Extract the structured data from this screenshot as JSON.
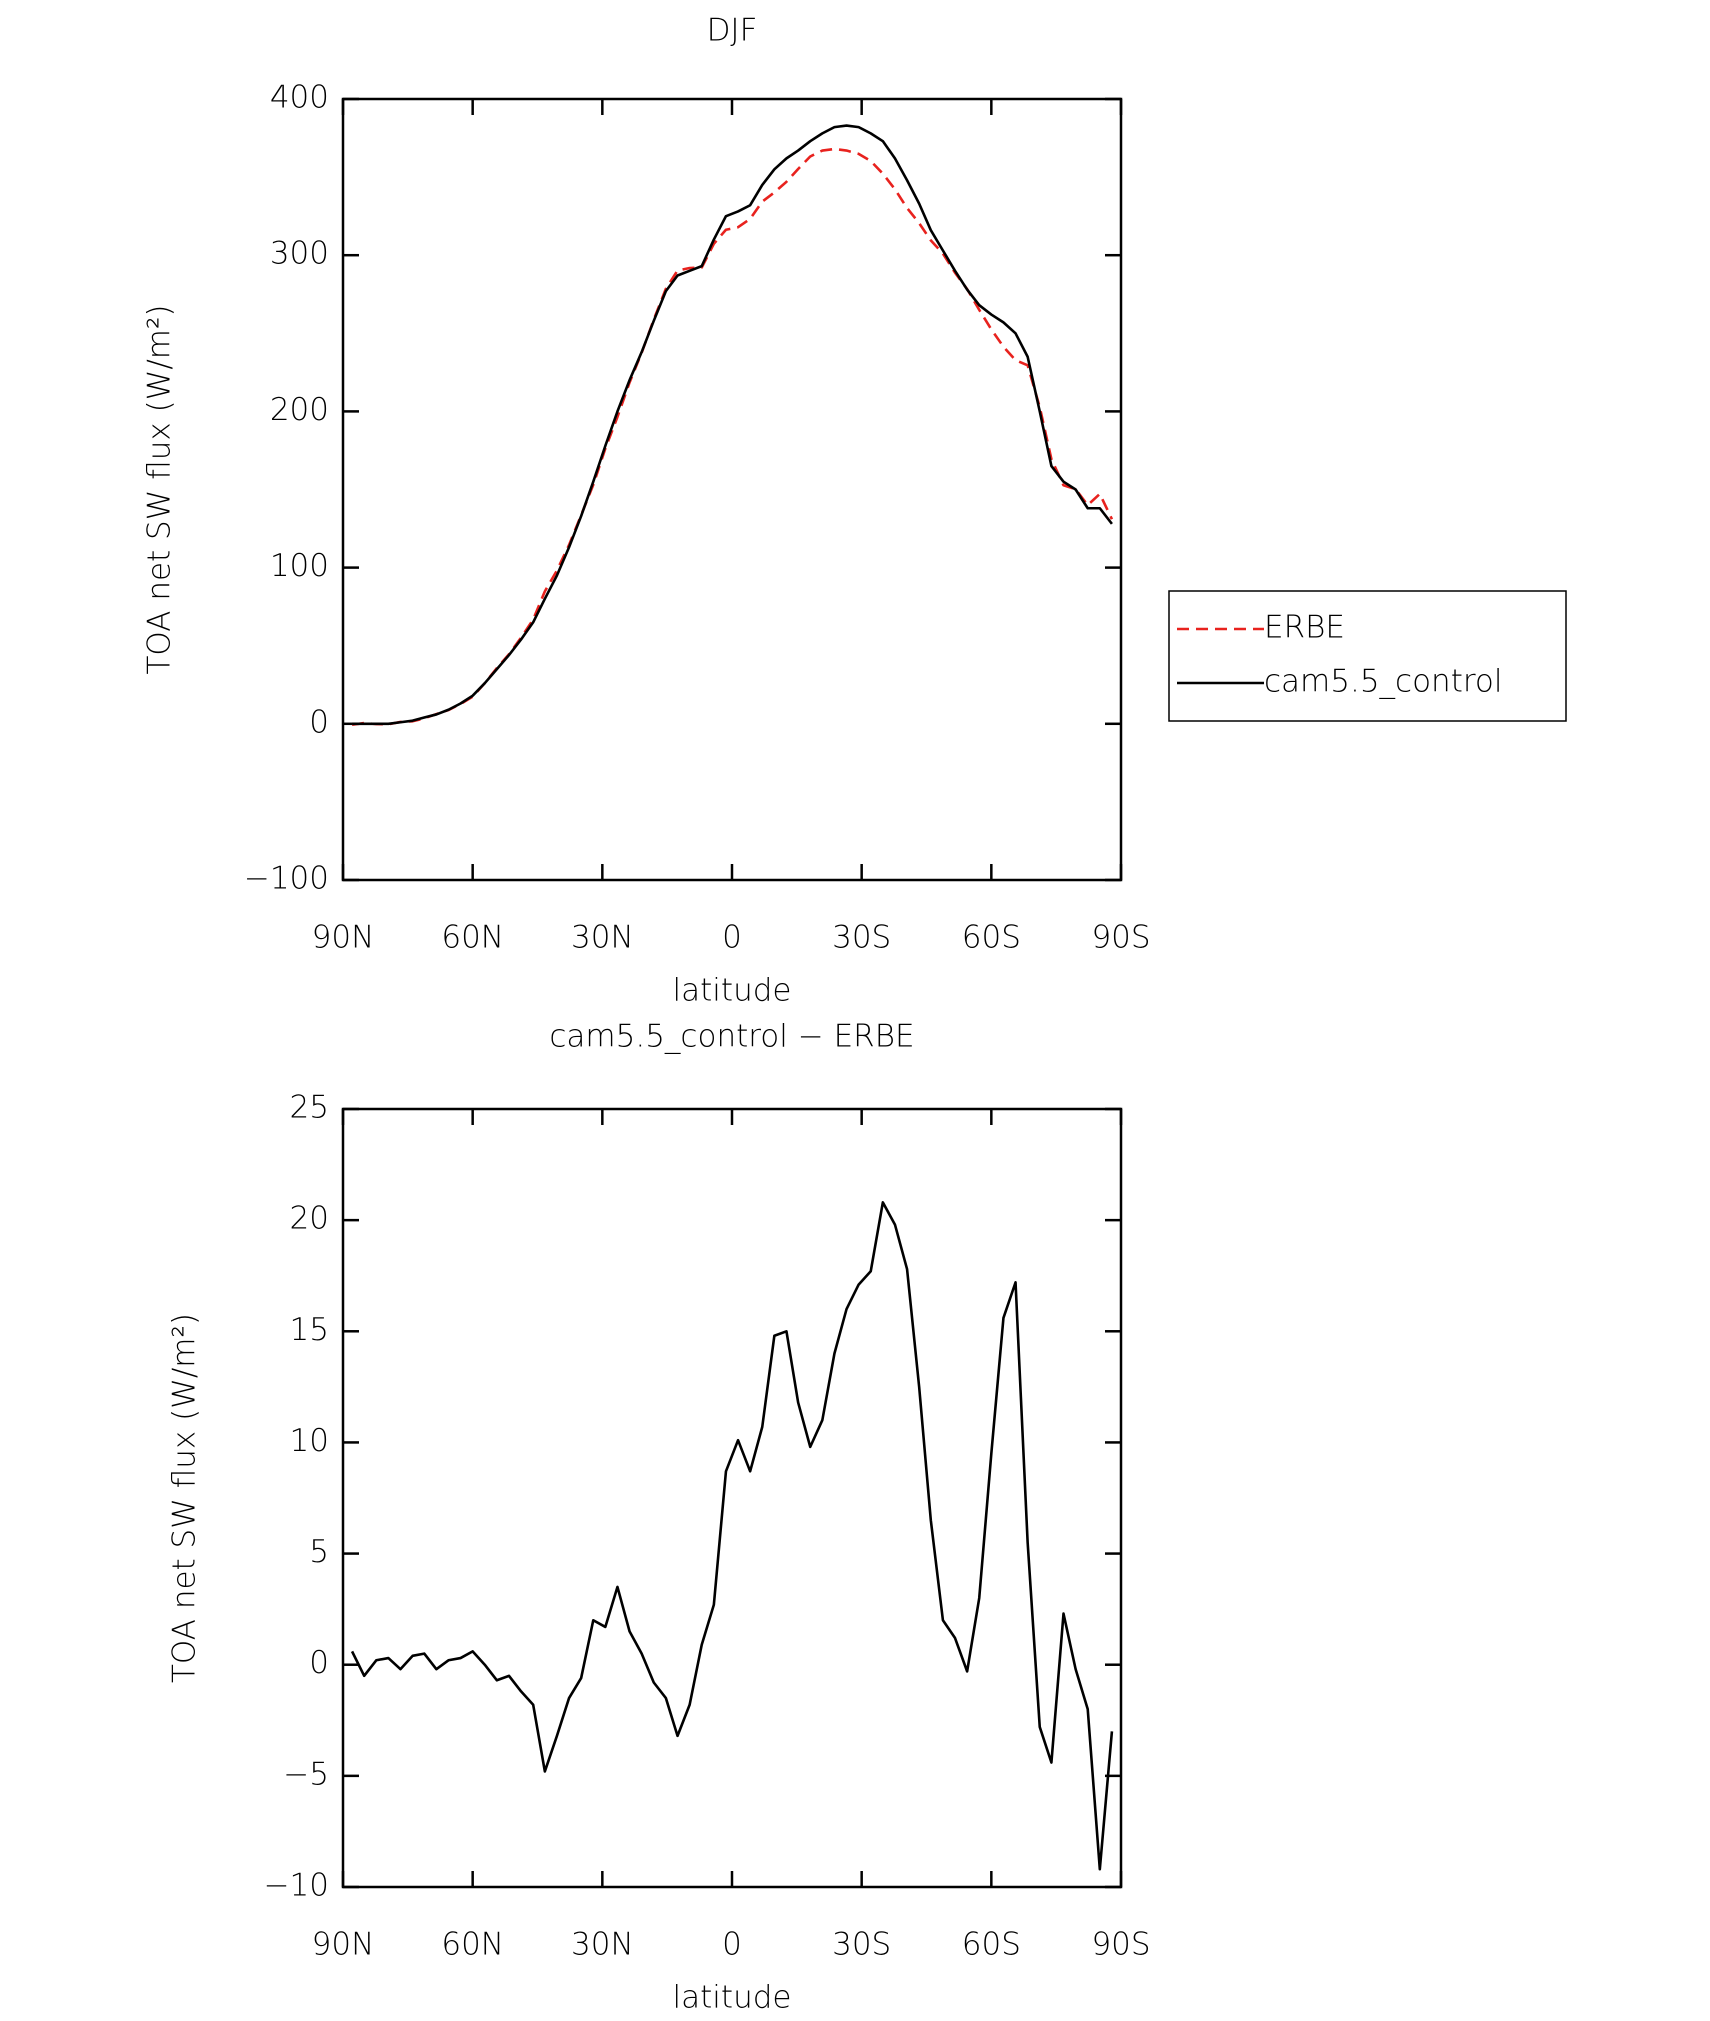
{
  "chart_data": [
    {
      "type": "line",
      "title": "DJF",
      "x_label": "latitude",
      "y_label": "TOA net SW flux (W/m²)",
      "x": [
        87.9,
        85.1,
        82.3,
        79.5,
        76.7,
        73.9,
        71.2,
        68.4,
        65.6,
        62.8,
        60.0,
        57.2,
        54.4,
        51.6,
        48.8,
        46.0,
        43.3,
        40.5,
        37.7,
        34.9,
        32.1,
        29.3,
        26.5,
        23.7,
        20.9,
        18.1,
        15.3,
        12.6,
        9.8,
        7.0,
        4.2,
        1.4,
        -1.4,
        -4.2,
        -7.0,
        -9.8,
        -12.6,
        -15.3,
        -18.1,
        -20.9,
        -23.7,
        -26.5,
        -29.3,
        -32.1,
        -34.9,
        -37.7,
        -40.5,
        -43.3,
        -46.0,
        -48.8,
        -51.6,
        -54.4,
        -57.2,
        -60.0,
        -62.8,
        -65.6,
        -68.4,
        -71.2,
        -73.9,
        -76.7,
        -79.5,
        -82.3,
        -85.1,
        -87.9
      ],
      "series": [
        {
          "name": "ERBE",
          "color": "#e8221e",
          "line_style": "dashed",
          "values": [
            -0.6,
            0.5,
            -0.2,
            -0.3,
            1.2,
            1.6,
            3.5,
            6.2,
            8.8,
            12.7,
            17.4,
            26.0,
            35.7,
            44.5,
            55.2,
            66.8,
            84.8,
            98.2,
            114.5,
            133.6,
            153.0,
            176.3,
            196.5,
            218.5,
            237.5,
            258.8,
            278.5,
            290.2,
            291.8,
            292.1,
            307.3,
            316.3,
            317.9,
            323.3,
            334.3,
            340.2,
            347,
            355.2,
            363.2,
            367,
            368,
            367,
            364.9,
            360.3,
            352.2,
            342.2,
            330.2,
            320.5,
            309.5,
            301,
            288.8,
            278.3,
            265,
            252.5,
            241.4,
            232.8,
            229.5,
            202.8,
            169.4,
            152.7,
            150.2,
            140,
            147.2,
            131
          ]
        },
        {
          "name": "cam5.5_control",
          "color": "#000000",
          "line_style": "solid",
          "values": [
            0,
            0,
            0,
            0,
            1,
            2,
            4,
            6,
            9,
            13,
            18,
            26,
            35,
            44,
            54,
            65,
            80,
            95,
            113,
            133,
            155,
            178,
            200,
            220,
            238,
            258,
            277,
            287,
            290,
            293,
            310,
            325,
            328,
            332,
            345,
            355,
            362,
            367,
            373,
            378,
            382,
            383,
            382,
            378,
            373,
            362,
            348,
            333,
            316,
            303,
            290,
            278,
            268,
            262,
            257,
            250,
            235,
            200,
            165,
            155,
            150,
            138,
            138,
            128
          ]
        }
      ],
      "xlim": [
        90,
        -90
      ],
      "xticks": [
        {
          "value": 90,
          "label": "90N"
        },
        {
          "value": 60,
          "label": "60N"
        },
        {
          "value": 30,
          "label": "30N"
        },
        0,
        {
          "value": -30,
          "label": "30S"
        },
        {
          "value": -60,
          "label": "60S"
        },
        {
          "value": -90,
          "label": "90S"
        }
      ],
      "ylim": [
        -100,
        400
      ],
      "yticks": [
        400,
        300,
        200,
        100,
        0,
        {
          "value": -100,
          "label": "−100"
        }
      ],
      "legend": "right"
    },
    {
      "type": "line",
      "title": "cam5.5_control − ERBE",
      "x_label": "latitude",
      "y_label": "TOA net SW flux (W/m²)",
      "x": [
        87.9,
        85.1,
        82.3,
        79.5,
        76.7,
        73.9,
        71.2,
        68.4,
        65.6,
        62.8,
        60.0,
        57.2,
        54.4,
        51.6,
        48.8,
        46.0,
        43.3,
        40.5,
        37.7,
        34.9,
        32.1,
        29.3,
        26.5,
        23.7,
        20.9,
        18.1,
        15.3,
        12.6,
        9.8,
        7.0,
        4.2,
        1.4,
        -1.4,
        -4.2,
        -7.0,
        -9.8,
        -12.6,
        -15.3,
        -18.1,
        -20.9,
        -23.7,
        -26.5,
        -29.3,
        -32.1,
        -34.9,
        -37.7,
        -40.5,
        -43.3,
        -46.0,
        -48.8,
        -51.6,
        -54.4,
        -57.2,
        -60.0,
        -62.8,
        -65.6,
        -68.4,
        -71.2,
        -73.9,
        -76.7,
        -79.5,
        -82.3,
        -85.1,
        -87.9
      ],
      "values": [
        0.6,
        -0.5,
        0.2,
        0.3,
        -0.2,
        0.4,
        0.5,
        -0.2,
        0.2,
        0.3,
        0.6,
        0.0,
        -0.7,
        -0.5,
        -1.2,
        -1.8,
        -4.8,
        -3.2,
        -1.5,
        -0.6,
        2.0,
        1.7,
        3.5,
        1.5,
        0.5,
        -0.8,
        -1.5,
        -3.2,
        -1.8,
        0.9,
        2.7,
        8.7,
        10.1,
        8.7,
        10.7,
        14.8,
        15.0,
        11.8,
        9.8,
        11.0,
        14.0,
        16.0,
        17.1,
        17.7,
        20.8,
        19.8,
        17.8,
        12.5,
        6.5,
        2.0,
        1.2,
        -0.3,
        3.0,
        9.5,
        15.6,
        17.2,
        5.5,
        -2.8,
        -4.4,
        2.3,
        -0.2,
        -2.0,
        -9.2,
        -3.0
      ],
      "color": "#000000",
      "xlim": [
        90,
        -90
      ],
      "xticks": [
        {
          "value": 90,
          "label": "90N"
        },
        {
          "value": 60,
          "label": "60N"
        },
        {
          "value": 30,
          "label": "30N"
        },
        0,
        {
          "value": -30,
          "label": "30S"
        },
        {
          "value": -60,
          "label": "60S"
        },
        {
          "value": -90,
          "label": "90S"
        }
      ],
      "ylim": [
        -10,
        25
      ],
      "yticks": [
        25,
        20,
        15,
        10,
        5,
        0,
        {
          "value": -5,
          "label": "−5"
        },
        {
          "value": -10,
          "label": "−10"
        }
      ]
    }
  ]
}
